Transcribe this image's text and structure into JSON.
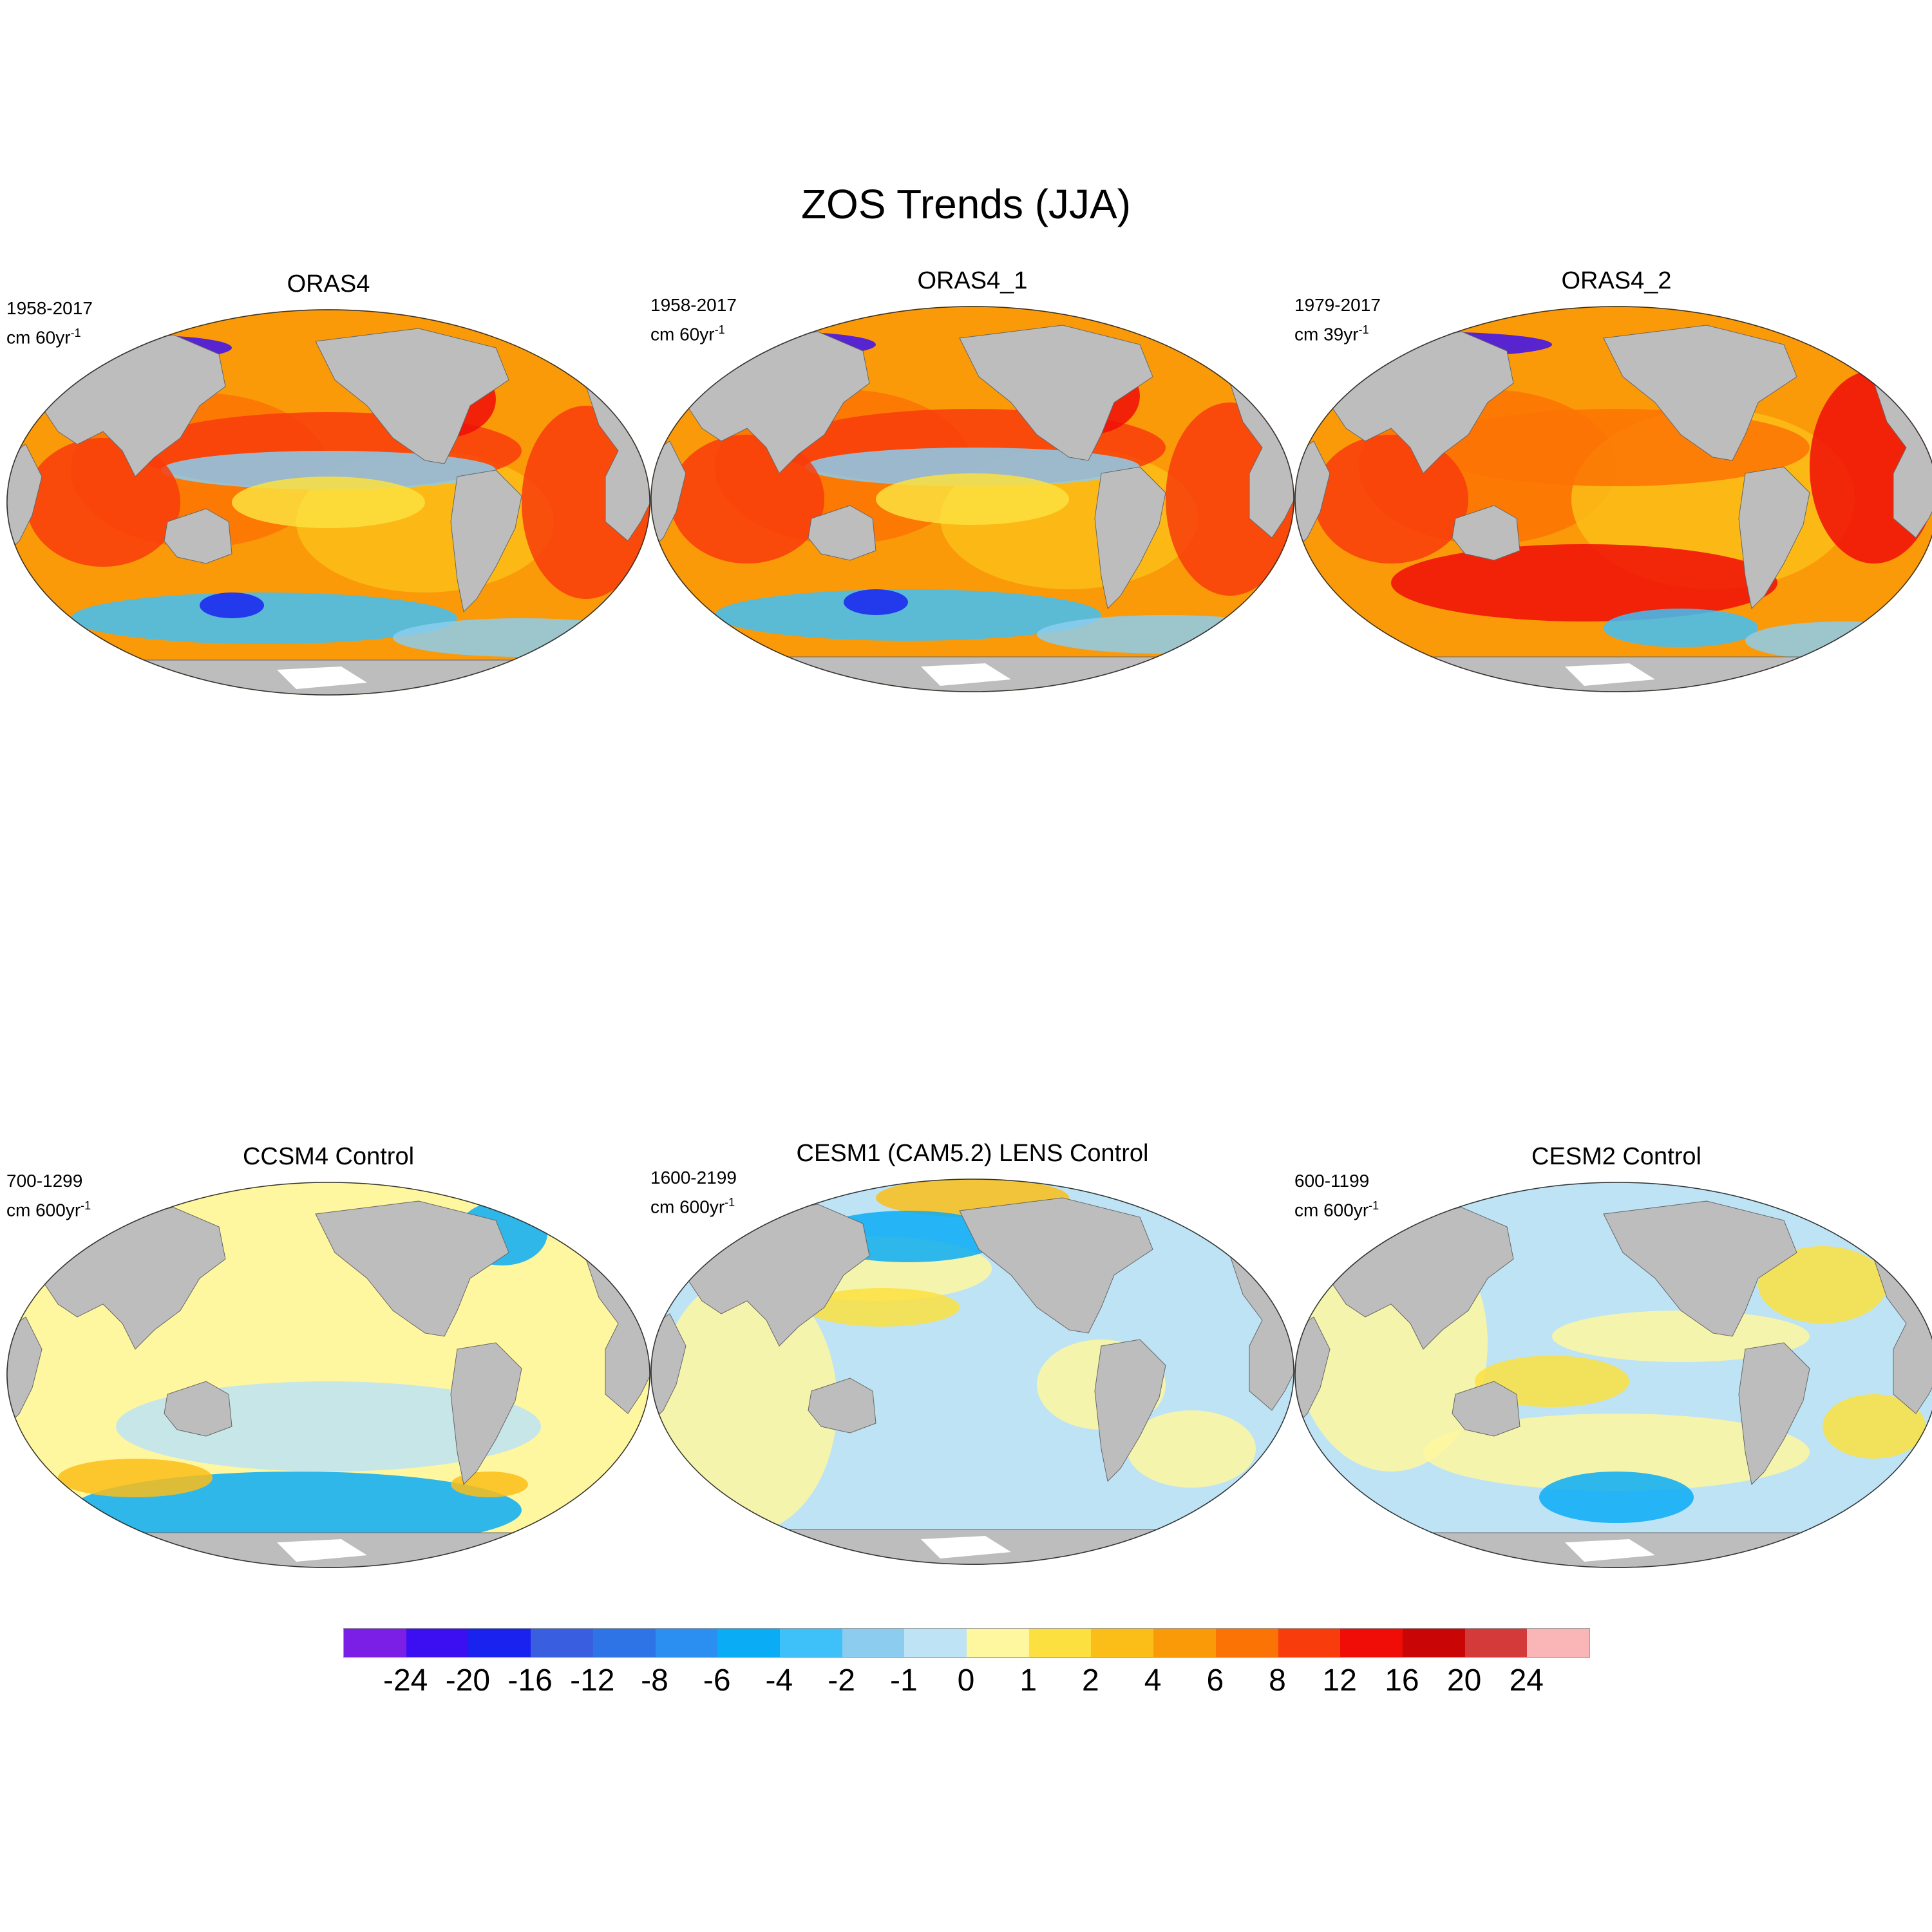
{
  "figure": {
    "title": "ZOS Trends (JJA)"
  },
  "panels": [
    {
      "title": "ORAS4",
      "period": "1958-2017",
      "units_prefix": "cm 60yr",
      "units_exp": "-1",
      "pattern": "warm"
    },
    {
      "title": "ORAS4_1",
      "period": "1958-2017",
      "units_prefix": "cm 60yr",
      "units_exp": "-1",
      "pattern": "warm"
    },
    {
      "title": "ORAS4_2",
      "period": "1979-2017",
      "units_prefix": "cm 39yr",
      "units_exp": "-1",
      "pattern": "warm2"
    },
    {
      "title": "CCSM4 Control",
      "period": "700-1299",
      "units_prefix": "cm 600yr",
      "units_exp": "-1",
      "pattern": "control1"
    },
    {
      "title": "CESM1 (CAM5.2) LENS Control",
      "period": "1600-2199",
      "units_prefix": "cm 600yr",
      "units_exp": "-1",
      "pattern": "control2"
    },
    {
      "title": "CESM2 Control",
      "period": "600-1199",
      "units_prefix": "cm 600yr",
      "units_exp": "-1",
      "pattern": "control3"
    }
  ],
  "colorbar": {
    "colors": [
      "#7b1fe6",
      "#3b0ff2",
      "#1a22f0",
      "#3a5ee0",
      "#2f74e6",
      "#2a8ff0",
      "#0aacf6",
      "#3ec0f8",
      "#8ccdef",
      "#bde3f5",
      "#fff7a0",
      "#fce040",
      "#fbbe18",
      "#fb9a08",
      "#fb7304",
      "#f83c0c",
      "#f00d08",
      "#c90505",
      "#d43a3a",
      "#fab6b6"
    ],
    "labels": [
      "-24",
      "-20",
      "-16",
      "-12",
      "-8",
      "-6",
      "-4",
      "-2",
      "-1",
      "0",
      "1",
      "2",
      "4",
      "6",
      "8",
      "12",
      "16",
      "20",
      "24"
    ]
  },
  "colors": {
    "land": "#bdbdbd",
    "ice": "#ffffff"
  }
}
